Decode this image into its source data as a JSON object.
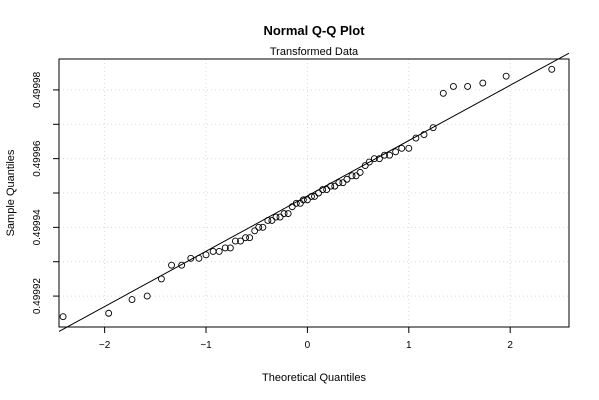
{
  "chart_data": {
    "type": "scatter",
    "title": "Normal Q-Q Plot",
    "subtitle": "Transformed Data",
    "xlabel": "Theoretical Quantiles",
    "ylabel": "Sample Quantiles",
    "xlim": [
      -2.45,
      2.58
    ],
    "ylim": [
      0.499911,
      0.499989
    ],
    "xticks": [
      -2,
      -1,
      0,
      1,
      2
    ],
    "xtick_labels": [
      "−2",
      "−1",
      "0",
      "1",
      "2"
    ],
    "yticks": [
      0.49992,
      0.49994,
      0.49996,
      0.49998
    ],
    "ytick_labels": [
      "0.49992",
      "0.49994",
      "0.49996",
      "0.49998"
    ],
    "grid": true,
    "reference_line": {
      "x": [
        -2.45,
        2.58
      ],
      "y": [
        0.4999097,
        0.4999907
      ]
    },
    "x": [
      -2.41,
      -1.96,
      -1.73,
      -1.58,
      -1.44,
      -1.34,
      -1.24,
      -1.15,
      -1.07,
      -1.0,
      -0.93,
      -0.87,
      -0.81,
      -0.76,
      -0.71,
      -0.66,
      -0.61,
      -0.57,
      -0.52,
      -0.48,
      -0.44,
      -0.39,
      -0.35,
      -0.31,
      -0.27,
      -0.23,
      -0.19,
      -0.15,
      -0.11,
      -0.07,
      -0.04,
      0.0,
      0.04,
      0.07,
      0.11,
      0.15,
      0.19,
      0.23,
      0.27,
      0.31,
      0.35,
      0.39,
      0.44,
      0.48,
      0.52,
      0.57,
      0.61,
      0.66,
      0.71,
      0.76,
      0.81,
      0.87,
      0.93,
      1.0,
      1.07,
      1.15,
      1.24,
      1.34,
      1.44,
      1.58,
      1.73,
      1.96,
      2.41
    ],
    "y": [
      0.499914,
      0.499915,
      0.499919,
      0.49992,
      0.499925,
      0.499929,
      0.499929,
      0.499931,
      0.499931,
      0.499932,
      0.499933,
      0.499933,
      0.499934,
      0.499934,
      0.499936,
      0.499936,
      0.499937,
      0.499937,
      0.499939,
      0.49994,
      0.49994,
      0.499942,
      0.499942,
      0.499943,
      0.499943,
      0.499944,
      0.499944,
      0.499946,
      0.499947,
      0.499947,
      0.499948,
      0.499948,
      0.499949,
      0.499949,
      0.49995,
      0.499951,
      0.499951,
      0.499952,
      0.499952,
      0.499953,
      0.499953,
      0.499954,
      0.499955,
      0.499955,
      0.499956,
      0.499958,
      0.499959,
      0.49996,
      0.49996,
      0.499961,
      0.499961,
      0.499962,
      0.499963,
      0.499963,
      0.499966,
      0.499967,
      0.499969,
      0.499979,
      0.499981,
      0.499981,
      0.499982,
      0.499984,
      0.499986
    ]
  }
}
